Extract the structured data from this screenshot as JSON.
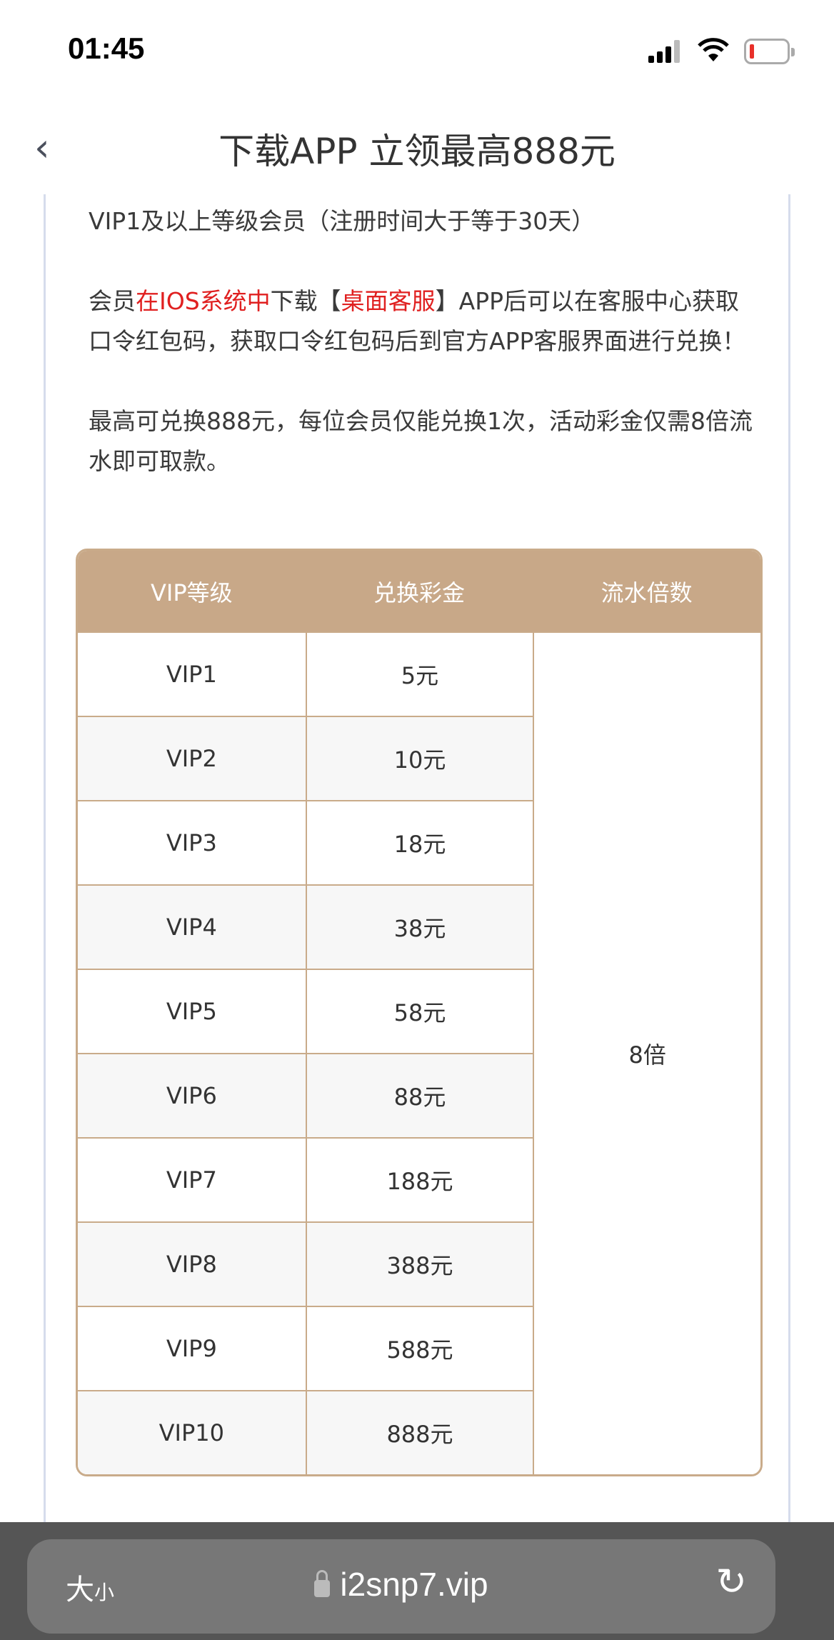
{
  "status": {
    "time": "01:45",
    "battery_color": "#e8302a"
  },
  "nav": {
    "title": "下载APP 立领最高888元"
  },
  "content": {
    "p1": "VIP1及以上等级会员（注册时间大于等于30天）",
    "p2": {
      "a": "会员",
      "b": "在IOS系统中",
      "c": "下载【",
      "d": "桌面客服",
      "e": "】APP后可以在客服中心获取口令红包码，获取口令红包码后到官方APP客服界面进行兑换！"
    },
    "p3": "最高可兑换888元，每位会员仅能兑换1次，活动彩金仅需8倍流水即可取款。",
    "highlight_color": "#e02020"
  },
  "table": {
    "headers": [
      "VIP等级",
      "兑换彩金",
      "流水倍数"
    ],
    "header_color": "#c8a888",
    "rows": [
      [
        "VIP1",
        "5元"
      ],
      [
        "VIP2",
        "10元"
      ],
      [
        "VIP3",
        "18元"
      ],
      [
        "VIP4",
        "38元"
      ],
      [
        "VIP5",
        "58元"
      ],
      [
        "VIP6",
        "88元"
      ],
      [
        "VIP7",
        "188元"
      ],
      [
        "VIP8",
        "388元"
      ],
      [
        "VIP9",
        "588元"
      ],
      [
        "VIP10",
        "888元"
      ]
    ],
    "multiplier": "8倍"
  },
  "browser": {
    "text_size": "大",
    "text_size_small": "小",
    "url": "i2snp7.vip"
  }
}
